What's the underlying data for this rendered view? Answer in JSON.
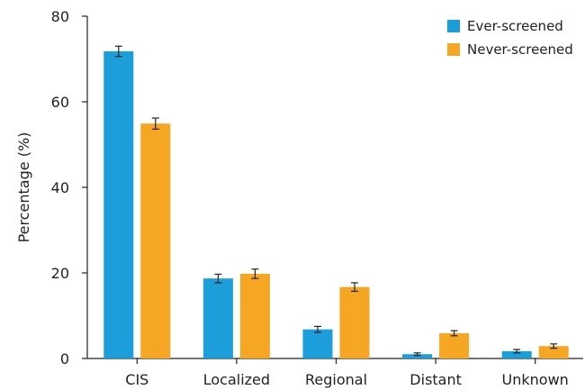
{
  "chart_data": {
    "type": "bar",
    "categories": [
      "CIS",
      "Localized",
      "Regional",
      "Distant",
      "Unknown"
    ],
    "series": [
      {
        "name": "Ever-screened",
        "color": "#1b9ed9",
        "values": [
          71.8,
          18.7,
          6.8,
          1.0,
          1.7
        ],
        "error": [
          1.2,
          1.0,
          0.7,
          0.3,
          0.4
        ]
      },
      {
        "name": "Never-screened",
        "color": "#f5a623",
        "values": [
          54.9,
          19.8,
          16.7,
          5.9,
          2.9
        ],
        "error": [
          1.3,
          1.1,
          1.0,
          0.6,
          0.5
        ]
      }
    ],
    "title": "",
    "xlabel": "",
    "ylabel": "Percentage (%)",
    "ylim": [
      0,
      80
    ],
    "yticks": [
      0,
      20,
      40,
      60,
      80
    ],
    "legend": "top-right",
    "grid": false
  }
}
